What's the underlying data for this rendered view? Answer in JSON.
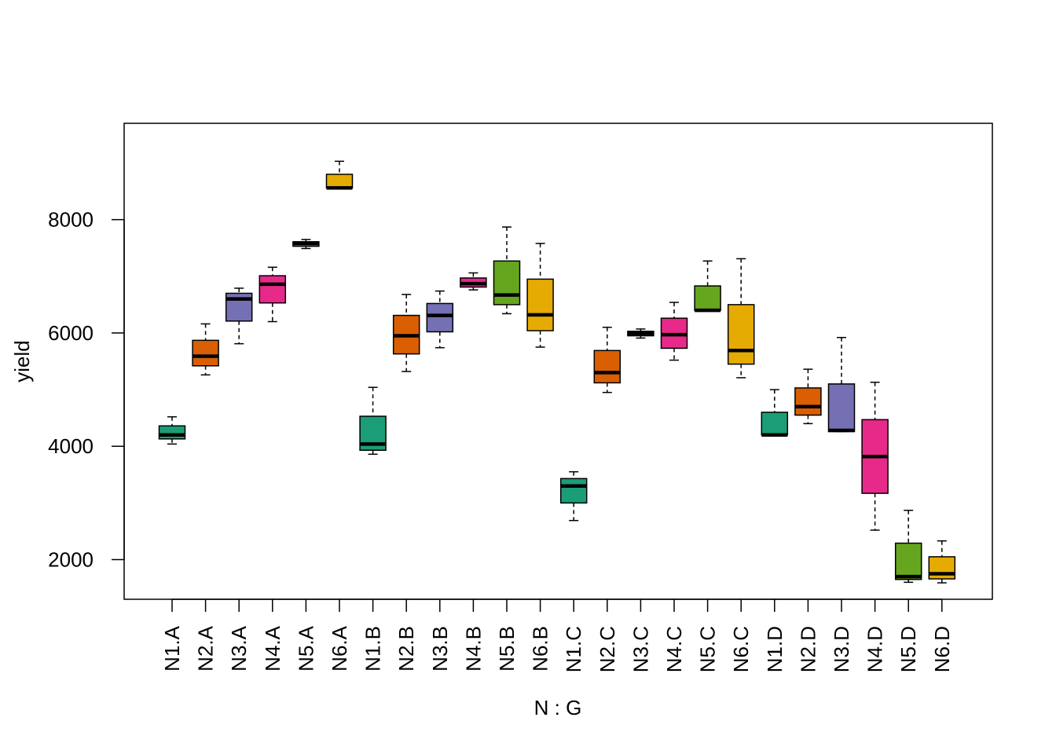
{
  "chart_data": {
    "type": "box",
    "title": "",
    "xlabel": "N : G",
    "ylabel": "yield",
    "ylim": [
      1300,
      9700
    ],
    "yticks": [
      2000,
      4000,
      6000,
      8000
    ],
    "grid": false,
    "legend": "none",
    "categories": [
      "N1.A",
      "N2.A",
      "N3.A",
      "N4.A",
      "N5.A",
      "N6.A",
      "N1.B",
      "N2.B",
      "N3.B",
      "N4.B",
      "N5.B",
      "N6.B",
      "N1.C",
      "N2.C",
      "N3.C",
      "N4.C",
      "N5.C",
      "N6.C",
      "N1.D",
      "N2.D",
      "N3.D",
      "N4.D",
      "N5.D",
      "N6.D"
    ],
    "colors": [
      "#1b9e77",
      "#d95f02",
      "#7570b3",
      "#e7298a",
      "#66a61e",
      "#e6ab02"
    ],
    "boxes": [
      {
        "min": 4040,
        "q1": 4130,
        "median": 4200,
        "q3": 4360,
        "max": 4520
      },
      {
        "min": 5260,
        "q1": 5420,
        "median": 5590,
        "q3": 5870,
        "max": 6160
      },
      {
        "min": 5810,
        "q1": 6210,
        "median": 6600,
        "q3": 6700,
        "max": 6790
      },
      {
        "min": 6200,
        "q1": 6530,
        "median": 6860,
        "q3": 7010,
        "max": 7160
      },
      {
        "min": 7490,
        "q1": 7530,
        "median": 7580,
        "q3": 7610,
        "max": 7650
      },
      {
        "min": 8560,
        "q1": 8560,
        "median": 8560,
        "q3": 8800,
        "max": 9030
      },
      {
        "min": 3860,
        "q1": 3930,
        "median": 4040,
        "q3": 4530,
        "max": 5040
      },
      {
        "min": 5320,
        "q1": 5630,
        "median": 5950,
        "q3": 6310,
        "max": 6680
      },
      {
        "min": 5740,
        "q1": 6020,
        "median": 6310,
        "q3": 6520,
        "max": 6740
      },
      {
        "min": 6760,
        "q1": 6810,
        "median": 6870,
        "q3": 6970,
        "max": 7060
      },
      {
        "min": 6340,
        "q1": 6500,
        "median": 6670,
        "q3": 7270,
        "max": 7870
      },
      {
        "min": 5750,
        "q1": 6040,
        "median": 6320,
        "q3": 6950,
        "max": 7580
      },
      {
        "min": 2690,
        "q1": 3000,
        "median": 3300,
        "q3": 3430,
        "max": 3550
      },
      {
        "min": 4950,
        "q1": 5120,
        "median": 5300,
        "q3": 5690,
        "max": 6100
      },
      {
        "min": 5910,
        "q1": 5950,
        "median": 5990,
        "q3": 6030,
        "max": 6070
      },
      {
        "min": 5520,
        "q1": 5730,
        "median": 5970,
        "q3": 6260,
        "max": 6540
      },
      {
        "min": 6400,
        "q1": 6400,
        "median": 6400,
        "q3": 6830,
        "max": 7270
      },
      {
        "min": 5210,
        "q1": 5450,
        "median": 5690,
        "q3": 6500,
        "max": 7310
      },
      {
        "min": 4200,
        "q1": 4200,
        "median": 4200,
        "q3": 4600,
        "max": 5000
      },
      {
        "min": 4400,
        "q1": 4550,
        "median": 4700,
        "q3": 5030,
        "max": 5360
      },
      {
        "min": 4260,
        "q1": 4260,
        "median": 4280,
        "q3": 5100,
        "max": 5920
      },
      {
        "min": 2520,
        "q1": 3170,
        "median": 3820,
        "q3": 4470,
        "max": 5130
      },
      {
        "min": 1600,
        "q1": 1650,
        "median": 1700,
        "q3": 2290,
        "max": 2870
      },
      {
        "min": 1590,
        "q1": 1660,
        "median": 1750,
        "q3": 2050,
        "max": 2330
      }
    ]
  }
}
